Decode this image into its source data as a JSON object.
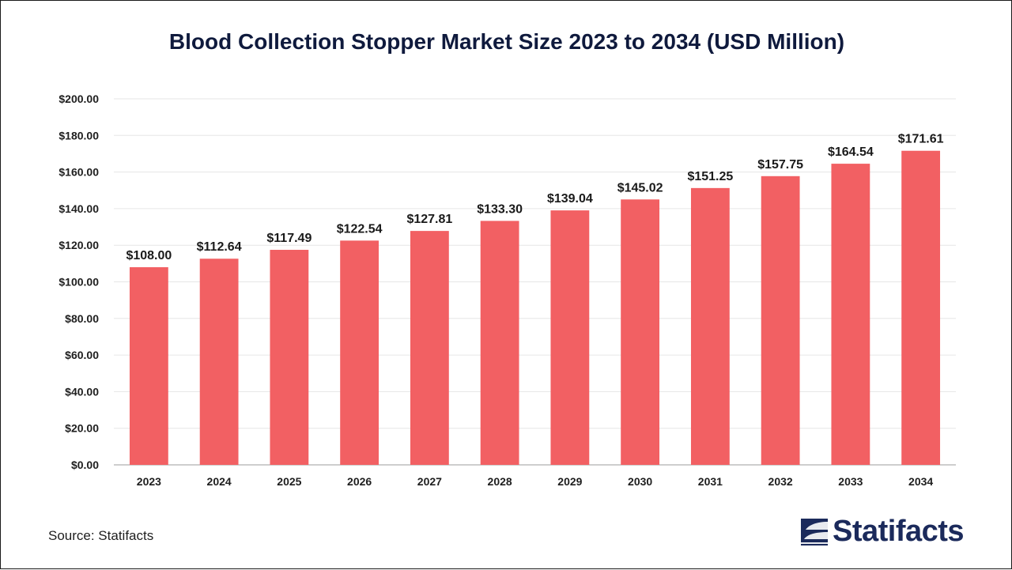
{
  "chart_data": {
    "type": "bar",
    "title": "Blood Collection Stopper Market Size 2023 to 2034 (USD Million)",
    "xlabel": "",
    "ylabel": "",
    "categories": [
      "2023",
      "2024",
      "2025",
      "2026",
      "2027",
      "2028",
      "2029",
      "2030",
      "2031",
      "2032",
      "2033",
      "2034"
    ],
    "values": [
      108.0,
      112.64,
      117.49,
      122.54,
      127.81,
      133.3,
      139.04,
      145.02,
      151.25,
      157.75,
      164.54,
      171.61
    ],
    "data_labels": [
      "$108.00",
      "$112.64",
      "$117.49",
      "$122.54",
      "$127.81",
      "$133.30",
      "$139.04",
      "$145.02",
      "$151.25",
      "$157.75",
      "$164.54",
      "$171.61"
    ],
    "ylim": [
      0,
      200
    ],
    "yticks": [
      0,
      20,
      40,
      60,
      80,
      100,
      120,
      140,
      160,
      180,
      200
    ],
    "ytick_labels": [
      "$0.00",
      "$20.00",
      "$40.00",
      "$60.00",
      "$80.00",
      "$100.00",
      "$120.00",
      "$140.00",
      "$160.00",
      "$180.00",
      "$200.00"
    ],
    "grid": true,
    "legend": "none",
    "bar_color": "#f26063"
  },
  "footer": {
    "source": "Source: Statifacts"
  },
  "brand": {
    "name": "Statifacts",
    "icon": "statifacts-logo-icon",
    "color": "#1b2a5b"
  }
}
